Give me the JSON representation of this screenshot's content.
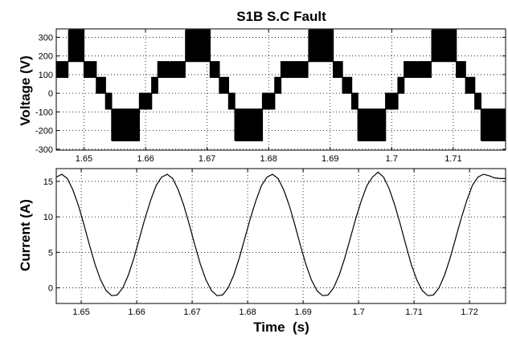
{
  "chart_data": [
    {
      "type": "line",
      "title": "S1B S.C Fault",
      "xlabel": "",
      "ylabel": "Voltage (V)",
      "xlim": [
        1.6455,
        1.7185
      ],
      "ylim": [
        -305,
        345
      ],
      "grid": true,
      "x_ticks": [
        "1.65",
        "1.66",
        "1.67",
        "1.68",
        "1.69",
        "1.7",
        "1.71"
      ],
      "y_ticks": [
        "300",
        "200",
        "100",
        "0",
        "-100",
        "-200",
        "-300"
      ],
      "series": [
        {
          "description": "PWM stepped line-voltage waveform, levels in volts",
          "levels": [
            340,
            170,
            85,
            0,
            -85,
            -170,
            -255
          ],
          "segments": [
            {
              "from": 1.6455,
              "to": 1.6475,
              "level": 170,
              "switching_to": 85
            },
            {
              "from": 1.6475,
              "to": 1.65,
              "level": 340,
              "switching_to": 170
            },
            {
              "from": 1.65,
              "to": 1.652,
              "level": 170,
              "switching_to": 85
            },
            {
              "from": 1.652,
              "to": 1.6535,
              "level": 85,
              "switching_to": 0
            },
            {
              "from": 1.6535,
              "to": 1.6545,
              "level": 0,
              "switching_to": -85
            },
            {
              "from": 1.6545,
              "to": 1.659,
              "level": -255,
              "switching_to": -85
            },
            {
              "from": 1.659,
              "to": 1.661,
              "level": -85,
              "switching_to": 0
            },
            {
              "from": 1.661,
              "to": 1.662,
              "level": 0,
              "switching_to": 85
            },
            {
              "from": 1.662,
              "to": 1.664,
              "level": 85,
              "switching_to": 170
            },
            {
              "from": 1.664,
              "to": 1.6665,
              "level": 170,
              "switching_to": 85
            },
            {
              "from": 1.6665,
              "to": 1.6705,
              "level": 340,
              "switching_to": 170
            },
            {
              "from": 1.6705,
              "to": 1.672,
              "level": 170,
              "switching_to": 85
            },
            {
              "from": 1.672,
              "to": 1.6735,
              "level": 85,
              "switching_to": 0
            },
            {
              "from": 1.6735,
              "to": 1.6745,
              "level": 0,
              "switching_to": -85
            },
            {
              "from": 1.6745,
              "to": 1.679,
              "level": -255,
              "switching_to": -85
            },
            {
              "from": 1.679,
              "to": 1.681,
              "level": -85,
              "switching_to": 0
            },
            {
              "from": 1.681,
              "to": 1.682,
              "level": 0,
              "switching_to": 85
            },
            {
              "from": 1.682,
              "to": 1.684,
              "level": 85,
              "switching_to": 170
            },
            {
              "from": 1.684,
              "to": 1.6865,
              "level": 170,
              "switching_to": 85
            },
            {
              "from": 1.6865,
              "to": 1.6905,
              "level": 340,
              "switching_to": 170
            },
            {
              "from": 1.6905,
              "to": 1.692,
              "level": 170,
              "switching_to": 85
            },
            {
              "from": 1.692,
              "to": 1.6935,
              "level": 85,
              "switching_to": 0
            },
            {
              "from": 1.6935,
              "to": 1.6945,
              "level": 0,
              "switching_to": -85
            },
            {
              "from": 1.6945,
              "to": 1.699,
              "level": -255,
              "switching_to": -85
            },
            {
              "from": 1.699,
              "to": 1.701,
              "level": -85,
              "switching_to": 0
            },
            {
              "from": 1.701,
              "to": 1.702,
              "level": 0,
              "switching_to": 85
            },
            {
              "from": 1.702,
              "to": 1.704,
              "level": 85,
              "switching_to": 170
            },
            {
              "from": 1.704,
              "to": 1.7065,
              "level": 170,
              "switching_to": 85
            },
            {
              "from": 1.7065,
              "to": 1.7105,
              "level": 340,
              "switching_to": 170
            },
            {
              "from": 1.7105,
              "to": 1.712,
              "level": 170,
              "switching_to": 85
            },
            {
              "from": 1.712,
              "to": 1.7135,
              "level": 85,
              "switching_to": 0
            },
            {
              "from": 1.7135,
              "to": 1.7145,
              "level": 0,
              "switching_to": -85
            },
            {
              "from": 1.7145,
              "to": 1.7185,
              "level": -255,
              "switching_to": -85
            }
          ]
        }
      ]
    },
    {
      "type": "line",
      "title": "",
      "xlabel": "Time  (s)",
      "ylabel": "Current (A)",
      "xlim": [
        1.6455,
        1.7265
      ],
      "ylim": [
        -2.2,
        16.8
      ],
      "grid": true,
      "x_ticks": [
        "1.65",
        "1.66",
        "1.67",
        "1.68",
        "1.69",
        "1.7",
        "1.71",
        "1.72"
      ],
      "y_ticks": [
        "15",
        "10",
        "5",
        "0"
      ],
      "series": [
        {
          "x": [
            1.6455,
            1.6465,
            1.6475,
            1.6485,
            1.6495,
            1.6505,
            1.6515,
            1.6525,
            1.6535,
            1.6545,
            1.6555,
            1.6565,
            1.6575,
            1.6585,
            1.6595,
            1.6605,
            1.6615,
            1.6625,
            1.6635,
            1.6645,
            1.6655,
            1.6665,
            1.6675,
            1.6685,
            1.6695,
            1.6705,
            1.6715,
            1.6725,
            1.6735,
            1.6745,
            1.6755,
            1.6765,
            1.6775,
            1.6785,
            1.6795,
            1.6805,
            1.6815,
            1.6825,
            1.6835,
            1.6845,
            1.6855,
            1.6865,
            1.6875,
            1.6885,
            1.6895,
            1.6905,
            1.6915,
            1.6925,
            1.6935,
            1.6945,
            1.6955,
            1.6965,
            1.6975,
            1.6985,
            1.6995,
            1.7005,
            1.7015,
            1.7025,
            1.7035,
            1.7045,
            1.7055,
            1.7065,
            1.7075,
            1.7085,
            1.7095,
            1.7105,
            1.7115,
            1.7125,
            1.7135,
            1.7145,
            1.7155,
            1.7165,
            1.7175,
            1.7185,
            1.7195,
            1.7205,
            1.7215,
            1.7225,
            1.7235,
            1.7245,
            1.7255,
            1.7265
          ],
          "y": [
            15.6,
            16.0,
            15.4,
            13.8,
            11.6,
            8.9,
            6.0,
            3.3,
            1.1,
            -0.4,
            -1.1,
            -1.0,
            0.0,
            1.8,
            4.2,
            7.0,
            9.8,
            12.3,
            14.4,
            15.6,
            16.0,
            15.4,
            13.8,
            11.6,
            8.9,
            6.0,
            3.3,
            1.1,
            -0.4,
            -1.1,
            -1.0,
            0.0,
            1.8,
            4.2,
            7.0,
            9.8,
            12.3,
            14.4,
            15.6,
            16.0,
            15.4,
            13.8,
            11.6,
            8.9,
            6.0,
            3.3,
            1.1,
            -0.4,
            -1.1,
            -1.0,
            0.0,
            1.8,
            4.2,
            7.0,
            9.8,
            12.3,
            14.4,
            15.6,
            16.3,
            15.6,
            14.0,
            11.7,
            9.0,
            6.1,
            3.3,
            1.1,
            -0.4,
            -1.1,
            -1.0,
            0.0,
            1.8,
            4.2,
            7.0,
            9.8,
            12.3,
            14.4,
            15.6,
            16.0,
            15.8,
            15.5,
            15.4,
            15.4
          ]
        }
      ]
    }
  ]
}
